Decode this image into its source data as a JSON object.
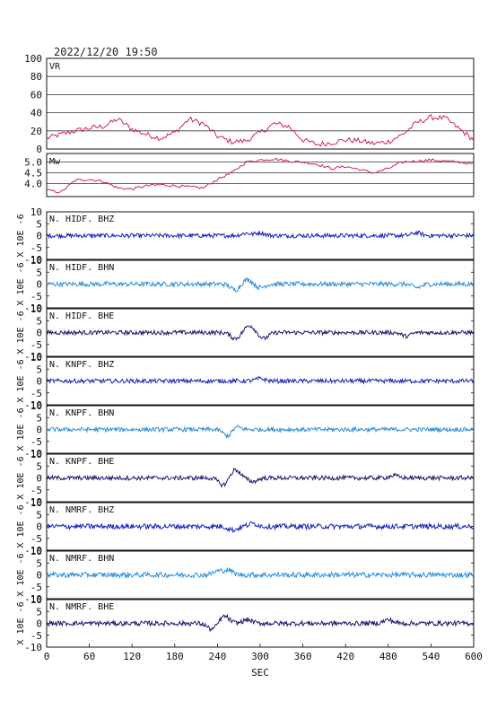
{
  "timestamp": "2022/12/20  19:50",
  "chart_data": [
    {
      "type": "line",
      "panel": "VR",
      "label": "VR",
      "color": "#d0234a",
      "ylim": [
        0,
        100
      ],
      "yticks": [
        "100",
        "80",
        "60",
        "40",
        "20",
        "0"
      ],
      "grid": true,
      "x": [
        0,
        20,
        40,
        60,
        80,
        100,
        120,
        140,
        160,
        180,
        200,
        220,
        240,
        260,
        280,
        300,
        320,
        340,
        360,
        380,
        400,
        420,
        440,
        460,
        480,
        500,
        520,
        540,
        560,
        580,
        600
      ],
      "values": [
        12,
        16,
        20,
        23,
        25,
        33,
        22,
        16,
        12,
        18,
        33,
        28,
        14,
        8,
        9,
        18,
        28,
        25,
        10,
        5,
        7,
        10,
        9,
        6,
        8,
        16,
        29,
        35,
        34,
        22,
        10
      ]
    },
    {
      "type": "line",
      "panel": "Mw",
      "label": "Mw",
      "color": "#d0234a",
      "ylim": [
        3.4,
        5.4
      ],
      "yticks": [
        "5.0",
        "4.5",
        "4.0"
      ],
      "grid": true,
      "x": [
        0,
        20,
        40,
        60,
        80,
        100,
        120,
        140,
        160,
        180,
        200,
        220,
        240,
        260,
        280,
        300,
        320,
        340,
        360,
        380,
        400,
        420,
        440,
        460,
        480,
        500,
        520,
        540,
        560,
        580,
        600
      ],
      "values": [
        3.7,
        3.6,
        4.15,
        4.2,
        4.1,
        3.8,
        3.75,
        3.9,
        3.95,
        3.9,
        3.85,
        3.8,
        4.2,
        4.5,
        5.0,
        5.1,
        5.15,
        5.05,
        5.0,
        4.9,
        4.7,
        4.8,
        4.65,
        4.5,
        4.7,
        5.0,
        5.05,
        5.1,
        5.05,
        5.0,
        4.9
      ]
    }
  ],
  "traces": [
    {
      "label": "N. HIDF. BHZ",
      "color": "#1a24b8",
      "ylim": [
        -10,
        10
      ],
      "amp": 0.9,
      "events": [
        [
          280,
          1.0
        ],
        [
          300,
          1.2
        ],
        [
          520,
          1.2
        ]
      ]
    },
    {
      "label": "N. HIDF. BHN",
      "color": "#2f8fd8",
      "ylim": [
        -10,
        10
      ],
      "amp": 1.0,
      "events": [
        [
          265,
          -2.5
        ],
        [
          282,
          2.0
        ],
        [
          300,
          -1.5
        ],
        [
          520,
          -1.5
        ]
      ]
    },
    {
      "label": "N. HIDF. BHE",
      "color": "#1a1a6e",
      "ylim": [
        -10,
        10
      ],
      "amp": 0.9,
      "events": [
        [
          265,
          -2.5
        ],
        [
          285,
          3.0
        ],
        [
          305,
          -2.5
        ],
        [
          505,
          -1.5
        ]
      ]
    },
    {
      "label": "N. KNPF. BHZ",
      "color": "#1a24b8",
      "ylim": [
        -10,
        10
      ],
      "amp": 0.9,
      "events": [
        [
          300,
          1.0
        ]
      ]
    },
    {
      "label": "N. KNPF. BHN",
      "color": "#2f8fd8",
      "ylim": [
        -10,
        10
      ],
      "amp": 0.9,
      "events": [
        [
          255,
          -3.0
        ],
        [
          265,
          1.5
        ]
      ]
    },
    {
      "label": "N. KNPF. BHE",
      "color": "#1a1a6e",
      "ylim": [
        -10,
        10
      ],
      "amp": 0.9,
      "events": [
        [
          248,
          -3.0
        ],
        [
          265,
          3.5
        ],
        [
          290,
          -1.5
        ],
        [
          488,
          1.0
        ]
      ]
    },
    {
      "label": "N. NMRF. BHZ",
      "color": "#1a24b8",
      "ylim": [
        -10,
        10
      ],
      "amp": 1.1,
      "events": [
        [
          262,
          -1.5
        ],
        [
          290,
          1.2
        ]
      ]
    },
    {
      "label": "N. NMRF. BHN",
      "color": "#2f8fd8",
      "ylim": [
        -10,
        10
      ],
      "amp": 1.1,
      "events": [
        [
          240,
          1.5
        ],
        [
          255,
          2.0
        ]
      ]
    },
    {
      "label": "N. NMRF. BHE",
      "color": "#1a1a6e",
      "ylim": [
        -10,
        10
      ],
      "amp": 1.0,
      "events": [
        [
          232,
          -2.5
        ],
        [
          250,
          3.0
        ],
        [
          282,
          1.5
        ],
        [
          480,
          1.5
        ]
      ]
    }
  ],
  "trace_yticks": [
    "10",
    "5",
    "0",
    "-5",
    "-10"
  ],
  "ylabel_traces": "X 10E -6",
  "xaxis": {
    "label": "SEC",
    "ticks": [
      "0",
      "60",
      "120",
      "180",
      "240",
      "300",
      "360",
      "420",
      "480",
      "540",
      "600"
    ],
    "xlim": [
      0,
      600
    ]
  }
}
